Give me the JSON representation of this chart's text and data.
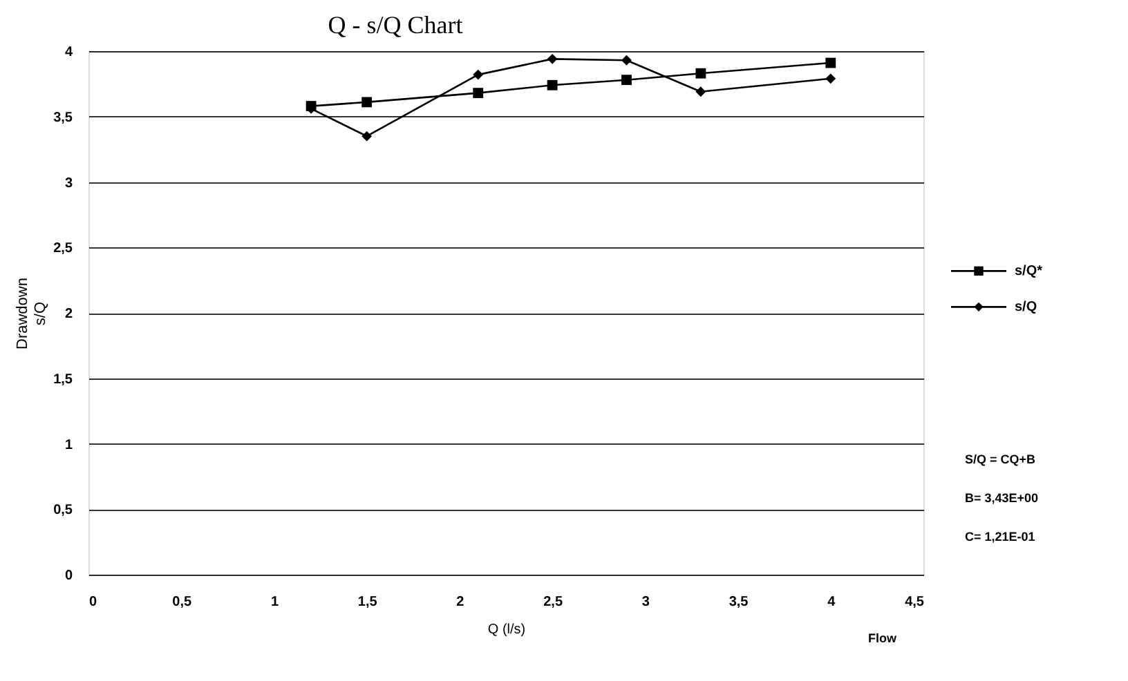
{
  "chart_data": {
    "type": "line",
    "title": "Q - s/Q Chart",
    "xlabel": "Q (l/s)",
    "ylabel": "Drawdown\ns/Q",
    "x": [
      1.2,
      1.5,
      2.1,
      2.5,
      2.9,
      3.3,
      4.0
    ],
    "series": [
      {
        "name": "s/Q*",
        "color": "#000000",
        "marker": "square",
        "values": [
          3.58,
          3.61,
          3.68,
          3.74,
          3.78,
          3.83,
          3.91
        ]
      },
      {
        "name": "s/Q",
        "color": "#000000",
        "marker": "diamond",
        "values": [
          3.56,
          3.35,
          3.82,
          3.94,
          3.93,
          3.69,
          3.79
        ]
      }
    ],
    "xlim": [
      0,
      4.5
    ],
    "ylim": [
      0,
      4
    ],
    "xticks": [
      0,
      {
        "value": 0.5,
        "label": "0,5"
      },
      1,
      {
        "value": 1.5,
        "label": "1,5"
      },
      2,
      {
        "value": 2.5,
        "label": "2,5"
      },
      3,
      {
        "value": 3.5,
        "label": "3,5"
      },
      4,
      {
        "value": 4.5,
        "label": "4,5"
      }
    ],
    "yticks": [
      0,
      {
        "value": 0.5,
        "label": "0,5"
      },
      1,
      {
        "value": 1.5,
        "label": "1,5"
      },
      2,
      {
        "value": 2.5,
        "label": "2,5"
      },
      3,
      {
        "value": 3.5,
        "label": "3,5"
      },
      4
    ],
    "grid": "y",
    "legend": "right",
    "line_style": "solid",
    "annotations": [
      "S/Q = CQ+B",
      "B= 3,43E+00",
      "C= 1,21E-01",
      "Flow"
    ]
  }
}
